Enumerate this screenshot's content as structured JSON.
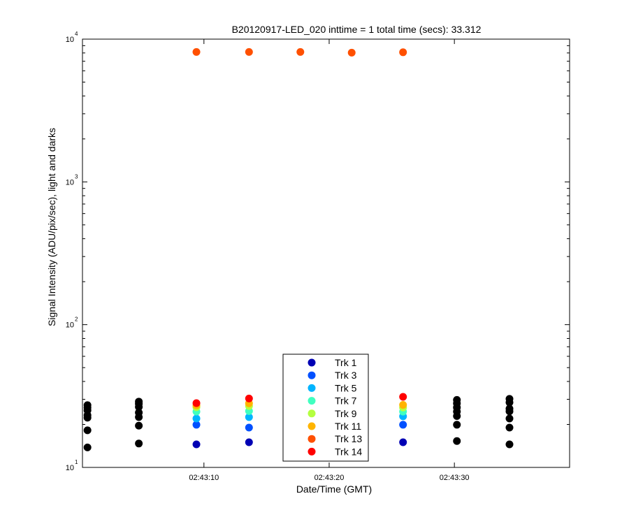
{
  "chart_data": {
    "type": "scatter",
    "title": "B20120917-LED_020 inttime = 1 total time (secs): 33.312",
    "xlabel": "Date/Time (GMT)",
    "ylabel": "Signal Intensity (ADU/pix/sec), light and darks",
    "y_scale": "log",
    "ylim": [
      10,
      10000
    ],
    "xlim": [
      "02:43:00.3",
      "02:43:39.2"
    ],
    "grid": false,
    "legend_position": "bottom-center",
    "x_ticks": [
      {
        "value": "02:43:10",
        "label": "02:43:10"
      },
      {
        "value": "02:43:20",
        "label": "02:43:20"
      },
      {
        "value": "02:43:30",
        "label": "02:43:30"
      }
    ],
    "y_ticks": [
      {
        "value": 10,
        "base": "10",
        "exponent": "1"
      },
      {
        "value": 100,
        "base": "10",
        "exponent": "2"
      },
      {
        "value": 1000,
        "base": "10",
        "exponent": "3"
      },
      {
        "value": 10000,
        "base": "10",
        "exponent": "4"
      }
    ],
    "dark_color": "#000000",
    "dark_points": [
      {
        "x": "02:43:00.7",
        "values": [
          13.8,
          18.2,
          22.3,
          23.2,
          25.1,
          26.2,
          27.3
        ]
      },
      {
        "x": "02:43:04.8",
        "values": [
          14.7,
          19.6,
          22.5,
          24.2,
          26.5,
          27.9,
          28.9
        ]
      },
      {
        "x": "02:43:30.2",
        "values": [
          15.3,
          19.9,
          22.9,
          24.6,
          26.3,
          28.1,
          29.7
        ]
      },
      {
        "x": "02:43:34.4",
        "values": [
          14.5,
          19.0,
          22.0,
          24.7,
          25.8,
          28.5,
          30.2
        ]
      }
    ],
    "light_x": [
      "02:43:09.4",
      "02:43:13.6",
      "02:43:17.7",
      "02:43:21.8",
      "02:43:25.9"
    ],
    "series": [
      {
        "name": "Trk 1",
        "color": "#0000b4",
        "values": [
          14.5,
          15.0,
          null,
          null,
          15.0
        ]
      },
      {
        "name": "Trk 3",
        "color": "#0050ff",
        "values": [
          19.9,
          19.0,
          null,
          null,
          19.9
        ]
      },
      {
        "name": "Trk 5",
        "color": "#00b4ff",
        "values": [
          22.0,
          22.5,
          null,
          null,
          22.8
        ]
      },
      {
        "name": "Trk 7",
        "color": "#40ffc0",
        "values": [
          24.6,
          24.8,
          null,
          null,
          24.6
        ]
      },
      {
        "name": "Trk 9",
        "color": "#b4ff40",
        "values": [
          26.4,
          26.9,
          null,
          null,
          26.3
        ]
      },
      {
        "name": "Trk 11",
        "color": "#ffb400",
        "values": [
          27.2,
          28.1,
          null,
          null,
          27.4
        ]
      },
      {
        "name": "Trk 13",
        "color": "#ff5000",
        "values": [
          8130,
          8130,
          8130,
          8040,
          8090
        ]
      },
      {
        "name": "Trk 14",
        "color": "#ff0000",
        "values": [
          28.2,
          30.4,
          null,
          null,
          31.2
        ]
      }
    ]
  }
}
